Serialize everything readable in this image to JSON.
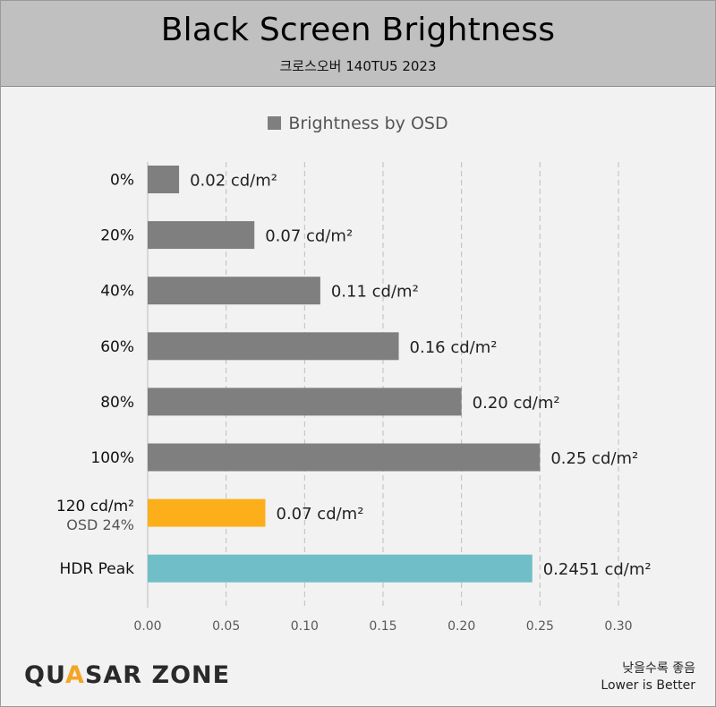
{
  "header": {
    "title": "Black Screen Brightness",
    "subtitle": "크로스오버 140TU5 2023"
  },
  "legend": {
    "label": "Brightness by OSD",
    "color": "#7f7f7f"
  },
  "chart_data": {
    "type": "bar",
    "orientation": "horizontal",
    "title": "Black Screen Brightness",
    "subtitle": "크로스오버 140TU5 2023",
    "categories": [
      [
        "0%"
      ],
      [
        "20%"
      ],
      [
        "40%"
      ],
      [
        "60%"
      ],
      [
        "80%"
      ],
      [
        "100%"
      ],
      [
        "120 cd/m²",
        "OSD 24%"
      ],
      [
        "HDR Peak"
      ]
    ],
    "series": [
      {
        "name": "Brightness by OSD",
        "values": [
          0.02,
          0.068,
          0.11,
          0.16,
          0.2,
          0.25,
          0.075,
          0.2451
        ],
        "data_labels": [
          "0.02 cd/m²",
          "0.07 cd/m²",
          "0.11 cd/m²",
          "0.16 cd/m²",
          "0.20 cd/m²",
          "0.25 cd/m²",
          "0.07 cd/m²",
          "0.2451 cd/m²"
        ],
        "colors": [
          "#7f7f7f",
          "#7f7f7f",
          "#7f7f7f",
          "#7f7f7f",
          "#7f7f7f",
          "#7f7f7f",
          "#fcaf1b",
          "#70bec7"
        ]
      }
    ],
    "xlim": [
      0,
      0.3
    ],
    "x_ticks": [
      "0.00",
      "0.05",
      "0.10",
      "0.15",
      "0.20",
      "0.25",
      "0.30"
    ],
    "grid": "vertical dashed",
    "legend_position": "top-center"
  },
  "footer": {
    "brand_left": "QU",
    "brand_accent": "A",
    "brand_right": "SAR ZONE",
    "note_korean": "낮을수록 좋음",
    "note_english": "Lower is Better"
  }
}
